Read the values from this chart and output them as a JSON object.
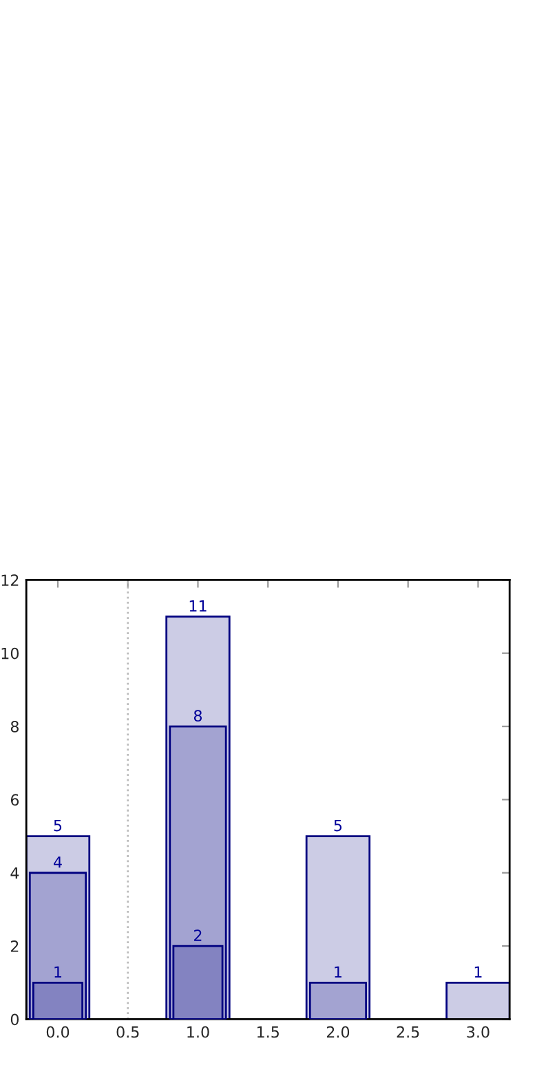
{
  "chart_data": {
    "type": "bar",
    "x": [
      0,
      1,
      2,
      3
    ],
    "series": [
      {
        "color": "#cccce5",
        "values": [
          5,
          11,
          5,
          1
        ]
      },
      {
        "color": "#a3a3d1",
        "values": [
          4,
          8,
          1,
          null
        ]
      },
      {
        "color": "#8383c1",
        "values": [
          1,
          2,
          null,
          null
        ]
      }
    ],
    "data_labels": true,
    "xlim": [
      -0.225,
      3.225
    ],
    "xticks": [
      {
        "value": 0,
        "label": "0.0"
      },
      {
        "value": 0.5,
        "label": "0.5"
      },
      {
        "value": 1,
        "label": "1.0"
      },
      {
        "value": 1.5,
        "label": "1.5"
      },
      {
        "value": 2,
        "label": "2.0"
      },
      {
        "value": 2.5,
        "label": "2.5"
      },
      {
        "value": 3,
        "label": "3.0"
      }
    ],
    "ylim": [
      0,
      12
    ],
    "yticks": [
      0,
      2,
      4,
      6,
      8,
      10,
      12
    ],
    "ref_lines": [
      {
        "axis": "x",
        "value": 0.5,
        "color": "#bbbbbb",
        "line_style": "dotted"
      }
    ],
    "grid": false,
    "legend": false
  }
}
